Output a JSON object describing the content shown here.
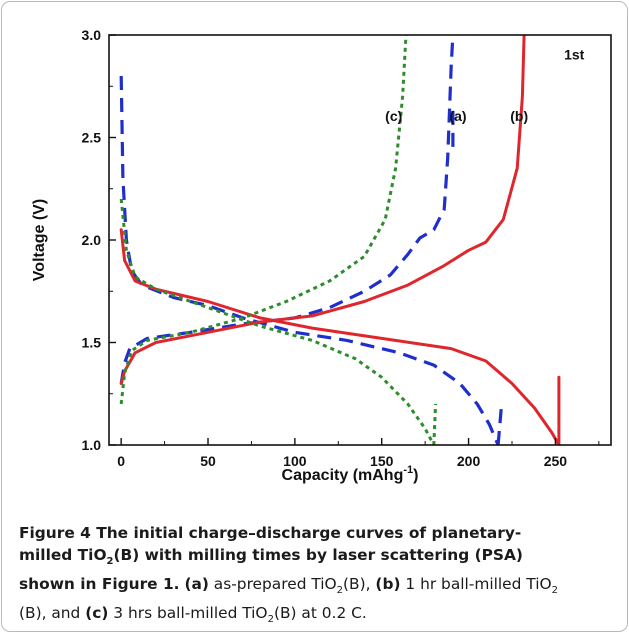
{
  "chart_data": {
    "type": "line",
    "xlabel": "Capacity (mAhg",
    "xlabel_sup": "-1",
    "xlabel_end": ")",
    "ylabel": "Voltage (V)",
    "xlim": [
      -7,
      282
    ],
    "ylim": [
      1.0,
      3.0
    ],
    "xticks": [
      0,
      50,
      100,
      150,
      200,
      250
    ],
    "yticks": [
      1.0,
      1.5,
      2.0,
      2.5,
      3.0
    ],
    "ytick_labels": [
      "1.0",
      "1.5",
      "2.0",
      "2.5",
      "3.0"
    ],
    "grid": false,
    "annotations": [
      {
        "text": "1st",
        "x": 255,
        "y": 2.88
      },
      {
        "text": "(c)",
        "x": 152,
        "y": 2.58
      },
      {
        "text": "(a)",
        "x": 189,
        "y": 2.58
      },
      {
        "text": "(b)",
        "x": 224,
        "y": 2.58
      }
    ],
    "series": [
      {
        "label": "(a)",
        "color": "#1f2fcc",
        "dash": "14 8",
        "width": 3.2,
        "discharge": [
          [
            0,
            2.8
          ],
          [
            1,
            2.3
          ],
          [
            3,
            2.0
          ],
          [
            6,
            1.85
          ],
          [
            12,
            1.78
          ],
          [
            30,
            1.72
          ],
          [
            50,
            1.68
          ],
          [
            70,
            1.62
          ],
          [
            100,
            1.55
          ],
          [
            130,
            1.51
          ],
          [
            160,
            1.45
          ],
          [
            180,
            1.39
          ],
          [
            195,
            1.3
          ],
          [
            205,
            1.2
          ],
          [
            212,
            1.1
          ],
          [
            217,
            1.0
          ]
        ],
        "charge": [
          [
            0,
            1.3
          ],
          [
            2,
            1.4
          ],
          [
            5,
            1.47
          ],
          [
            15,
            1.52
          ],
          [
            40,
            1.55
          ],
          [
            70,
            1.59
          ],
          [
            100,
            1.62
          ],
          [
            120,
            1.67
          ],
          [
            140,
            1.75
          ],
          [
            155,
            1.83
          ],
          [
            165,
            1.93
          ],
          [
            172,
            2.01
          ],
          [
            180,
            2.05
          ],
          [
            186,
            2.15
          ],
          [
            188,
            2.4
          ],
          [
            190,
            2.85
          ],
          [
            191,
            3.0
          ]
        ],
        "tail": [
          [
            191,
            2.63
          ],
          [
            191,
            2.42
          ]
        ],
        "tail2": [
          [
            217,
            1.0
          ],
          [
            219,
            1.2
          ]
        ]
      },
      {
        "label": "(b)",
        "color": "#e0262d",
        "dash": "",
        "width": 3.0,
        "discharge": [
          [
            0,
            2.05
          ],
          [
            2,
            1.9
          ],
          [
            8,
            1.8
          ],
          [
            20,
            1.76
          ],
          [
            50,
            1.7
          ],
          [
            80,
            1.62
          ],
          [
            110,
            1.57
          ],
          [
            150,
            1.52
          ],
          [
            190,
            1.47
          ],
          [
            210,
            1.41
          ],
          [
            225,
            1.3
          ],
          [
            238,
            1.18
          ],
          [
            248,
            1.06
          ],
          [
            252,
            1.0
          ]
        ],
        "charge": [
          [
            0,
            1.3
          ],
          [
            2,
            1.36
          ],
          [
            8,
            1.45
          ],
          [
            20,
            1.5
          ],
          [
            50,
            1.55
          ],
          [
            80,
            1.6
          ],
          [
            110,
            1.63
          ],
          [
            140,
            1.7
          ],
          [
            165,
            1.78
          ],
          [
            185,
            1.87
          ],
          [
            200,
            1.95
          ],
          [
            210,
            1.99
          ],
          [
            220,
            2.1
          ],
          [
            228,
            2.35
          ],
          [
            231,
            2.7
          ],
          [
            232,
            3.0
          ]
        ],
        "tail2": [
          [
            252,
            1.0
          ],
          [
            252,
            1.33
          ]
        ]
      },
      {
        "label": "(c)",
        "color": "#2e8c2c",
        "dash": "4 4",
        "width": 3.0,
        "discharge": [
          [
            0,
            2.2
          ],
          [
            3,
            1.95
          ],
          [
            8,
            1.82
          ],
          [
            20,
            1.76
          ],
          [
            50,
            1.67
          ],
          [
            80,
            1.58
          ],
          [
            110,
            1.51
          ],
          [
            135,
            1.42
          ],
          [
            150,
            1.33
          ],
          [
            165,
            1.2
          ],
          [
            175,
            1.08
          ],
          [
            180,
            1.0
          ]
        ],
        "charge": [
          [
            0,
            1.2
          ],
          [
            2,
            1.35
          ],
          [
            6,
            1.46
          ],
          [
            15,
            1.51
          ],
          [
            40,
            1.55
          ],
          [
            70,
            1.62
          ],
          [
            95,
            1.7
          ],
          [
            120,
            1.8
          ],
          [
            140,
            1.92
          ],
          [
            152,
            2.1
          ],
          [
            158,
            2.35
          ],
          [
            162,
            2.7
          ],
          [
            164,
            3.0
          ]
        ],
        "tail2": [
          [
            180,
            1.0
          ],
          [
            181,
            1.2
          ]
        ]
      }
    ]
  },
  "caption": {
    "fig_label": "Figure 4",
    "line1_rest": " The initial charge–discharge curves of planetary-",
    "line2_pre": "milled TiO",
    "line2_sub": "2",
    "line2_post": "(B) with milling times by laser scattering (PSA)",
    "line3_bold": "shown in Figure 1.",
    "a_tag": "(a)",
    "a_text_pre": " as-prepared TiO",
    "a_sub": "2",
    "a_text_post": "(B), ",
    "b_tag": "(b)",
    "b_text_pre": " 1 hr ball-milled TiO",
    "b_sub": "2",
    "b_text_post": "(B), and ",
    "c_tag": "(c)",
    "c_text_pre": " 3 hrs ball-milled TiO",
    "c_sub": "2",
    "c_text_post": "(B) at 0.2 C."
  }
}
